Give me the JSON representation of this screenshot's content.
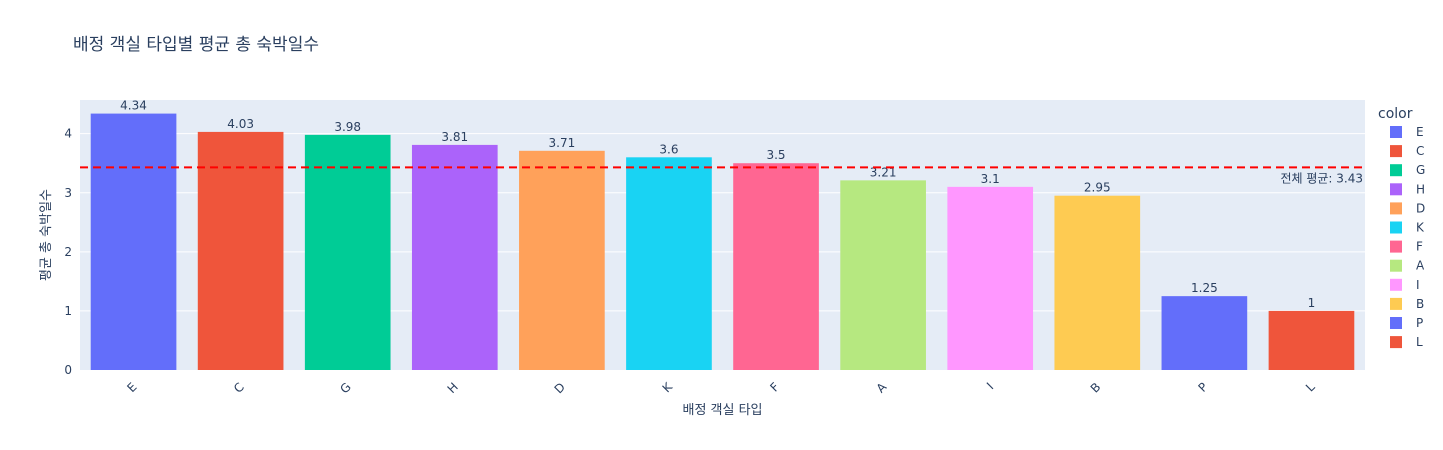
{
  "chart_data": {
    "type": "bar",
    "title": "배정 객실 타입별 평균 총 숙박일수",
    "xlabel": "배정 객실 타입",
    "ylabel": "평균 총 숙박일수",
    "categories": [
      "E",
      "C",
      "G",
      "H",
      "D",
      "K",
      "F",
      "A",
      "I",
      "B",
      "P",
      "L"
    ],
    "values": [
      4.34,
      4.03,
      3.98,
      3.81,
      3.71,
      3.6,
      3.5,
      3.21,
      3.1,
      2.95,
      1.25,
      1
    ],
    "value_labels": [
      "4.34",
      "4.03",
      "3.98",
      "3.81",
      "3.71",
      "3.6",
      "3.5",
      "3.21",
      "3.1",
      "2.95",
      "1.25",
      "1"
    ],
    "colors": [
      "#636efa",
      "#EF553B",
      "#00cc96",
      "#ab63fa",
      "#FFA15A",
      "#19d3f3",
      "#FF6692",
      "#B6E880",
      "#FF97FF",
      "#FECB52",
      "#636efa",
      "#EF553B"
    ],
    "ylim": [
      0,
      4.57
    ],
    "yticks": [
      0,
      1,
      2,
      3,
      4
    ],
    "ytick_labels": [
      "0",
      "1",
      "2",
      "3",
      "4"
    ],
    "grid": true,
    "plot_bgcolor": "#E5ECF6",
    "reference_line": {
      "value": 3.43,
      "color": "#ff0000",
      "style": "dashed",
      "label": "전체 평균: 3.43"
    },
    "legend": {
      "title": "color",
      "placement": "right",
      "entries": [
        "E",
        "C",
        "G",
        "H",
        "D",
        "K",
        "F",
        "A",
        "I",
        "B",
        "P",
        "L"
      ]
    }
  }
}
